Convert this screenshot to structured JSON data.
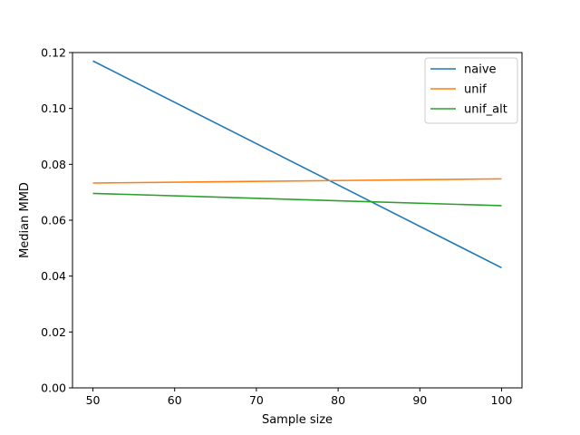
{
  "chart_data": {
    "type": "line",
    "title": "",
    "xlabel": "Sample size",
    "ylabel": "Median MMD",
    "xlim": [
      47.5,
      102.5
    ],
    "ylim": [
      0.0,
      0.12
    ],
    "xticks": [
      50,
      60,
      70,
      80,
      90,
      100
    ],
    "yticks": [
      0.0,
      0.02,
      0.04,
      0.06,
      0.08,
      0.1,
      0.12
    ],
    "xtick_labels": [
      "50",
      "60",
      "70",
      "80",
      "90",
      "100"
    ],
    "ytick_labels": [
      "0.00",
      "0.02",
      "0.04",
      "0.06",
      "0.08",
      "0.10",
      "0.12"
    ],
    "grid": false,
    "legend_position": "top-right",
    "series": [
      {
        "name": "naive",
        "color": "#1f77b4",
        "x": [
          50,
          100
        ],
        "y": [
          0.117,
          0.043
        ]
      },
      {
        "name": "unif",
        "color": "#ff7f0e",
        "x": [
          50,
          100
        ],
        "y": [
          0.0733,
          0.0748
        ]
      },
      {
        "name": "unif_alt",
        "color": "#2ca02c",
        "x": [
          50,
          100
        ],
        "y": [
          0.0696,
          0.0652
        ]
      }
    ]
  }
}
